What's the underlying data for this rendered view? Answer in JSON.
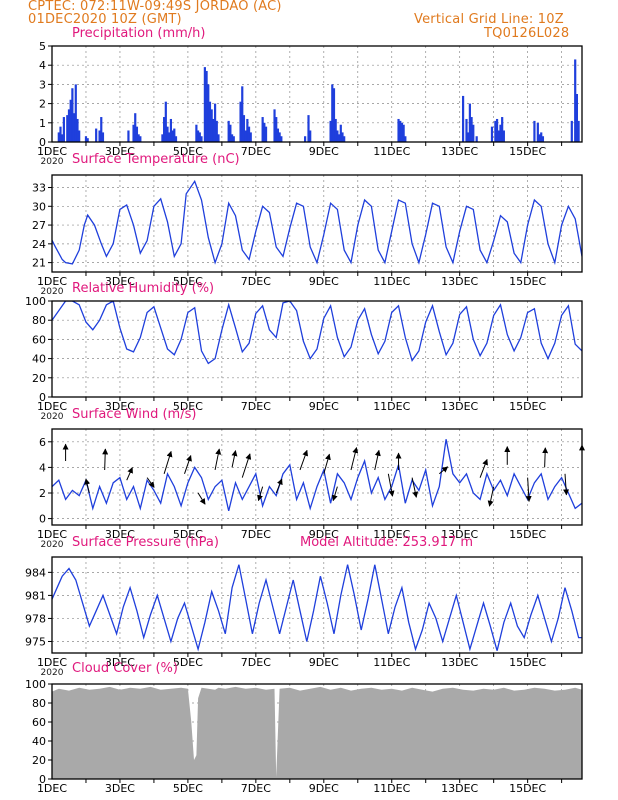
{
  "header": {
    "line1_left": "CPTEC:   072:11W-09:49S   JORDAO (AC)",
    "line2_left": "01DEC2020 10Z (GMT)",
    "line1_right": "Vertical Grid Line: 10Z",
    "line2_right": "TQ0126L028"
  },
  "colors": {
    "title": "#e0197d",
    "header": "#e07a1e",
    "line": "#1f3fdc",
    "bar": "#1f3fdc",
    "cloud": "#a9a9a9",
    "arrow": "#000000",
    "grid": "#8c8c8c"
  },
  "x_axis": {
    "day_range": [
      0,
      15.6
    ],
    "tick_labels": [
      "1DEC",
      "3DEC",
      "5DEC",
      "7DEC",
      "9DEC",
      "11DEC",
      "13DEC",
      "15DEC"
    ],
    "tick_days": [
      0,
      2,
      4,
      6,
      8,
      10,
      12,
      14
    ],
    "year_label": "2020",
    "vertical_grid_hour": "10Z"
  },
  "panels": {
    "precip": {
      "title": "Precipitation (mm/h)"
    },
    "temp": {
      "title": "Surface Temperature (nC)"
    },
    "rh": {
      "title": "Relative Humidity (%)"
    },
    "wind": {
      "title": "Surface Wind (m/s)"
    },
    "pres": {
      "title": "Surface Pressure (hPa)",
      "subtitle": "Model Altitude: 253.917 m"
    },
    "cloud": {
      "title": "Cloud Cover (%)"
    }
  },
  "chart_data": [
    {
      "id": "precip",
      "type": "bar",
      "title": "Precipitation (mm/h)",
      "ylabel": "mm/h",
      "ylim": [
        0,
        5
      ],
      "yticks": [
        0,
        1,
        2,
        3,
        4,
        5
      ],
      "grid": true,
      "x_days": [
        0.2,
        0.25,
        0.3,
        0.35,
        0.45,
        0.5,
        0.55,
        0.6,
        0.65,
        0.7,
        0.75,
        0.8,
        1.0,
        1.05,
        1.3,
        1.4,
        1.45,
        1.5,
        2.25,
        2.4,
        2.45,
        2.5,
        2.55,
        2.6,
        3.25,
        3.3,
        3.35,
        3.4,
        3.45,
        3.5,
        3.55,
        3.6,
        3.65,
        4.25,
        4.3,
        4.35,
        4.4,
        4.5,
        4.55,
        4.6,
        4.65,
        4.7,
        4.75,
        4.8,
        4.85,
        4.9,
        5.2,
        5.25,
        5.3,
        5.35,
        5.55,
        5.6,
        5.65,
        5.7,
        5.75,
        5.8,
        5.85,
        6.2,
        6.25,
        6.3,
        6.55,
        6.6,
        6.65,
        6.7,
        6.75,
        7.45,
        7.55,
        7.6,
        8.2,
        8.25,
        8.3,
        8.35,
        8.4,
        8.45,
        8.5,
        8.55,
        8.6,
        10.2,
        10.25,
        10.3,
        10.35,
        10.4,
        12.1,
        12.2,
        12.25,
        12.3,
        12.35,
        12.4,
        12.5,
        12.95,
        13.05,
        13.1,
        13.15,
        13.2,
        13.25,
        13.3,
        14.2,
        14.3,
        14.35,
        14.4,
        14.45,
        15.3,
        15.4,
        15.45,
        15.5
      ],
      "values": [
        0.5,
        0.8,
        0.4,
        1.3,
        1.4,
        1.7,
        2.2,
        2.8,
        1.5,
        3.0,
        1.2,
        0.6,
        0.3,
        0.2,
        0.7,
        0.6,
        1.3,
        0.5,
        0.6,
        0.9,
        1.5,
        0.8,
        0.4,
        0.3,
        0.4,
        1.3,
        2.1,
        0.8,
        0.5,
        1.2,
        0.6,
        0.7,
        0.3,
        0.9,
        0.6,
        0.5,
        0.3,
        3.9,
        3.7,
        3.0,
        2.1,
        1.7,
        1.2,
        2.0,
        1.1,
        0.4,
        1.1,
        0.9,
        0.4,
        0.3,
        2.1,
        2.9,
        1.4,
        0.6,
        1.2,
        0.8,
        0.5,
        1.3,
        1.0,
        0.8,
        1.7,
        1.3,
        0.7,
        0.5,
        0.3,
        0.3,
        1.4,
        0.6,
        1.1,
        3.0,
        2.8,
        1.2,
        0.6,
        0.4,
        0.9,
        0.5,
        0.3,
        1.2,
        1.1,
        1.0,
        0.9,
        0.3,
        2.4,
        1.2,
        0.5,
        2.0,
        1.3,
        0.9,
        0.3,
        0.8,
        1.1,
        1.2,
        0.6,
        0.9,
        1.3,
        0.6,
        1.1,
        1.0,
        0.4,
        0.5,
        0.3,
        1.1,
        4.3,
        2.5,
        1.1
      ]
    },
    {
      "id": "temp",
      "type": "line",
      "title": "Surface Temperature (nC)",
      "ylabel": "nC",
      "ylim": [
        19.5,
        35.0
      ],
      "yticks": [
        21,
        24,
        27,
        30,
        33
      ],
      "grid": true,
      "x_days": [
        0,
        0.1,
        0.2,
        0.3,
        0.4,
        0.6,
        0.8,
        0.95,
        1.05,
        1.25,
        1.45,
        1.6,
        1.8,
        2.0,
        2.2,
        2.4,
        2.6,
        2.8,
        3.0,
        3.2,
        3.4,
        3.6,
        3.8,
        3.95,
        4.2,
        4.4,
        4.6,
        4.8,
        5.0,
        5.2,
        5.4,
        5.6,
        5.8,
        6.0,
        6.2,
        6.4,
        6.6,
        6.8,
        7.0,
        7.2,
        7.4,
        7.6,
        7.8,
        8.0,
        8.2,
        8.4,
        8.6,
        8.8,
        9.0,
        9.2,
        9.4,
        9.6,
        9.8,
        10.0,
        10.2,
        10.4,
        10.6,
        10.8,
        11.0,
        11.2,
        11.4,
        11.6,
        11.8,
        12.0,
        12.2,
        12.4,
        12.6,
        12.8,
        13.0,
        13.2,
        13.4,
        13.6,
        13.8,
        14.0,
        14.2,
        14.4,
        14.6,
        14.8,
        15.0,
        15.2,
        15.4,
        15.6
      ],
      "values": [
        24.6,
        23.5,
        22.5,
        21.5,
        21.0,
        20.8,
        23.0,
        27.0,
        28.6,
        27.0,
        24.0,
        22.0,
        24.0,
        29.5,
        30.2,
        27.0,
        22.5,
        24.5,
        30.0,
        31.2,
        27.5,
        22.0,
        24.0,
        32.0,
        34.0,
        31.0,
        25.0,
        21.0,
        24.0,
        30.5,
        28.5,
        23.0,
        21.5,
        26.0,
        30.0,
        29.0,
        23.5,
        22.0,
        26.5,
        30.5,
        30.0,
        23.5,
        21.0,
        25.5,
        30.5,
        29.5,
        23.0,
        21.0,
        27.0,
        31.0,
        30.0,
        23.0,
        21.0,
        26.0,
        31.0,
        30.5,
        24.0,
        21.0,
        25.5,
        30.5,
        30.0,
        23.5,
        21.0,
        26.0,
        30.0,
        29.5,
        23.0,
        21.0,
        24.5,
        28.5,
        27.5,
        22.5,
        21.0,
        27.0,
        31.0,
        30.0,
        24.0,
        21.0,
        27.0,
        30.0,
        28.0,
        22.0
      ]
    },
    {
      "id": "rh",
      "type": "line",
      "title": "Relative Humidity (%)",
      "ylabel": "%",
      "ylim": [
        0,
        100
      ],
      "yticks": [
        0,
        20,
        40,
        60,
        80,
        100
      ],
      "grid": true,
      "x_days": [
        0,
        0.2,
        0.4,
        0.6,
        0.8,
        1.0,
        1.2,
        1.4,
        1.6,
        1.8,
        2.0,
        2.2,
        2.4,
        2.6,
        2.8,
        3.0,
        3.2,
        3.4,
        3.6,
        3.8,
        4.0,
        4.2,
        4.4,
        4.6,
        4.8,
        5.0,
        5.2,
        5.4,
        5.6,
        5.8,
        6.0,
        6.2,
        6.4,
        6.6,
        6.8,
        7.0,
        7.2,
        7.4,
        7.6,
        7.8,
        8.0,
        8.2,
        8.4,
        8.6,
        8.8,
        9.0,
        9.2,
        9.4,
        9.6,
        9.8,
        10.0,
        10.2,
        10.4,
        10.6,
        10.8,
        11.0,
        11.2,
        11.4,
        11.6,
        11.8,
        12.0,
        12.2,
        12.4,
        12.6,
        12.8,
        13.0,
        13.2,
        13.4,
        13.6,
        13.8,
        14.0,
        14.2,
        14.4,
        14.6,
        14.8,
        15.0,
        15.2,
        15.4,
        15.6
      ],
      "values": [
        80,
        90,
        100,
        100,
        96,
        78,
        70,
        80,
        96,
        100,
        72,
        50,
        47,
        62,
        88,
        94,
        72,
        50,
        44,
        60,
        88,
        93,
        48,
        35,
        40,
        70,
        96,
        72,
        47,
        56,
        87,
        95,
        70,
        62,
        98,
        100,
        90,
        58,
        40,
        50,
        82,
        95,
        62,
        42,
        52,
        80,
        92,
        65,
        45,
        58,
        88,
        95,
        62,
        38,
        48,
        78,
        95,
        68,
        44,
        56,
        86,
        94,
        60,
        43,
        56,
        85,
        96,
        65,
        48,
        62,
        88,
        92,
        56,
        40,
        56,
        85,
        95,
        55,
        48
      ]
    },
    {
      "id": "wind",
      "type": "line",
      "title": "Surface Wind (m/s)",
      "ylabel": "m/s",
      "ylim": [
        -0.5,
        7.0
      ],
      "yticks": [
        0,
        2,
        4,
        6
      ],
      "grid": true,
      "x_days": [
        0,
        0.2,
        0.4,
        0.6,
        0.8,
        1.0,
        1.2,
        1.4,
        1.6,
        1.8,
        2.0,
        2.2,
        2.4,
        2.6,
        2.8,
        3.0,
        3.2,
        3.4,
        3.6,
        3.8,
        4.0,
        4.2,
        4.4,
        4.6,
        4.8,
        5.0,
        5.2,
        5.4,
        5.6,
        5.8,
        6.0,
        6.2,
        6.4,
        6.6,
        6.8,
        7.0,
        7.2,
        7.4,
        7.6,
        7.8,
        8.0,
        8.2,
        8.4,
        8.6,
        8.8,
        9.0,
        9.2,
        9.4,
        9.6,
        9.8,
        10.0,
        10.2,
        10.4,
        10.6,
        10.8,
        11.0,
        11.2,
        11.4,
        11.6,
        11.8,
        12.0,
        12.2,
        12.4,
        12.6,
        12.8,
        13.0,
        13.2,
        13.4,
        13.6,
        13.8,
        14.0,
        14.2,
        14.4,
        14.6,
        14.8,
        15.0,
        15.2,
        15.4,
        15.6
      ],
      "values": [
        2.5,
        3.0,
        1.5,
        2.2,
        1.8,
        3.0,
        0.8,
        2.5,
        1.2,
        2.8,
        3.2,
        1.5,
        2.5,
        0.8,
        3.0,
        2.2,
        1.2,
        3.5,
        2.5,
        1.0,
        2.8,
        4.0,
        3.2,
        1.5,
        2.5,
        3.0,
        0.6,
        2.8,
        1.5,
        2.5,
        3.5,
        1.0,
        2.5,
        1.8,
        3.5,
        4.2,
        1.5,
        2.8,
        0.8,
        2.5,
        3.8,
        1.2,
        3.5,
        2.8,
        1.5,
        3.2,
        4.5,
        2.0,
        3.2,
        1.5,
        2.5,
        4.2,
        1.2,
        3.0,
        2.2,
        3.8,
        1.0,
        2.5,
        6.2,
        3.5,
        2.8,
        3.5,
        2.0,
        1.5,
        3.5,
        2.2,
        3.0,
        1.8,
        3.5,
        2.5,
        1.5,
        2.8,
        3.5,
        1.5,
        2.5,
        3.2,
        2.0,
        0.8,
        1.2
      ],
      "arrows": [
        {
          "x": 0.4,
          "y": 4.5,
          "dx": 0.0,
          "dy": 1.2
        },
        {
          "x": 1.1,
          "y": 2.0,
          "dx": -0.25,
          "dy": 1.0
        },
        {
          "x": 1.55,
          "y": 3.8,
          "dx": 0.05,
          "dy": 1.5
        },
        {
          "x": 2.2,
          "y": 3.0,
          "dx": 0.4,
          "dy": 0.9
        },
        {
          "x": 2.8,
          "y": 3.2,
          "dx": 0.5,
          "dy": -0.7
        },
        {
          "x": 3.3,
          "y": 3.5,
          "dx": 0.5,
          "dy": 1.6
        },
        {
          "x": 3.9,
          "y": 3.5,
          "dx": 0.45,
          "dy": 1.3
        },
        {
          "x": 4.3,
          "y": 2.0,
          "dx": 0.5,
          "dy": -0.8
        },
        {
          "x": 4.8,
          "y": 3.8,
          "dx": 0.3,
          "dy": 1.5
        },
        {
          "x": 5.3,
          "y": 4.0,
          "dx": 0.25,
          "dy": 1.2
        },
        {
          "x": 5.6,
          "y": 3.2,
          "dx": 0.55,
          "dy": 1.7
        },
        {
          "x": 6.2,
          "y": 2.5,
          "dx": -0.3,
          "dy": -1.0
        },
        {
          "x": 6.6,
          "y": 2.0,
          "dx": 0.4,
          "dy": 1.0
        },
        {
          "x": 7.3,
          "y": 3.8,
          "dx": 0.5,
          "dy": 1.4
        },
        {
          "x": 8.0,
          "y": 3.5,
          "dx": 0.4,
          "dy": 1.4
        },
        {
          "x": 8.4,
          "y": 2.5,
          "dx": -0.3,
          "dy": -1.0
        },
        {
          "x": 8.8,
          "y": 3.8,
          "dx": 0.4,
          "dy": 1.6
        },
        {
          "x": 9.5,
          "y": 3.8,
          "dx": 0.3,
          "dy": 1.4
        },
        {
          "x": 9.9,
          "y": 3.5,
          "dx": 0.3,
          "dy": -1.6
        },
        {
          "x": 10.2,
          "y": 3.8,
          "dx": 0.0,
          "dy": 1.2
        },
        {
          "x": 10.6,
          "y": 3.2,
          "dx": 0.3,
          "dy": -1.4
        },
        {
          "x": 11.4,
          "y": 3.5,
          "dx": 0.6,
          "dy": 0.5
        },
        {
          "x": 12.6,
          "y": 3.2,
          "dx": 0.5,
          "dy": 1.3
        },
        {
          "x": 13.0,
          "y": 2.5,
          "dx": -0.3,
          "dy": -1.4
        },
        {
          "x": 13.4,
          "y": 4.2,
          "dx": 0.0,
          "dy": 1.3
        },
        {
          "x": 14.0,
          "y": 3.2,
          "dx": 0.1,
          "dy": -1.7
        },
        {
          "x": 14.5,
          "y": 4.0,
          "dx": 0.05,
          "dy": 1.4
        },
        {
          "x": 15.1,
          "y": 3.5,
          "dx": 0.1,
          "dy": -1.5
        },
        {
          "x": 15.6,
          "y": 4.0,
          "dx": 0.0,
          "dy": 1.6
        }
      ]
    },
    {
      "id": "pres",
      "type": "line",
      "title": "Surface Pressure (hPa)",
      "ylabel": "hPa",
      "ylim": [
        973.5,
        986.0
      ],
      "yticks": [
        975,
        978,
        981,
        984
      ],
      "grid": true,
      "x_days": [
        0,
        0.15,
        0.3,
        0.5,
        0.7,
        0.9,
        1.1,
        1.3,
        1.5,
        1.7,
        1.9,
        2.1,
        2.3,
        2.5,
        2.7,
        2.9,
        3.1,
        3.3,
        3.5,
        3.7,
        3.9,
        4.1,
        4.3,
        4.5,
        4.7,
        4.9,
        5.1,
        5.3,
        5.5,
        5.7,
        5.9,
        6.1,
        6.3,
        6.5,
        6.7,
        6.9,
        7.1,
        7.3,
        7.5,
        7.7,
        7.9,
        8.1,
        8.3,
        8.5,
        8.7,
        8.9,
        9.1,
        9.3,
        9.5,
        9.7,
        9.9,
        10.1,
        10.3,
        10.5,
        10.7,
        10.9,
        11.1,
        11.3,
        11.5,
        11.7,
        11.9,
        12.1,
        12.3,
        12.5,
        12.7,
        12.9,
        13.1,
        13.3,
        13.5,
        13.7,
        13.9,
        14.1,
        14.3,
        14.5,
        14.7,
        14.9,
        15.1,
        15.3,
        15.5,
        15.6
      ],
      "values": [
        980.5,
        982.0,
        983.5,
        984.5,
        983.0,
        980.0,
        977.0,
        979.0,
        981.0,
        978.5,
        976.0,
        979.5,
        982.0,
        979.0,
        975.5,
        978.5,
        981.0,
        978.0,
        975.0,
        978.0,
        980.0,
        977.0,
        974.0,
        977.5,
        981.5,
        979.0,
        976.0,
        982.0,
        985.0,
        980.5,
        976.0,
        980.0,
        983.0,
        979.5,
        976.0,
        979.5,
        983.0,
        979.0,
        975.0,
        979.0,
        983.5,
        980.0,
        976.0,
        981.0,
        985.0,
        981.0,
        976.5,
        980.5,
        985.0,
        980.5,
        976.0,
        979.5,
        982.0,
        977.5,
        974.0,
        976.5,
        980.0,
        978.0,
        975.0,
        978.0,
        981.0,
        977.5,
        974.0,
        977.0,
        980.0,
        977.0,
        973.8,
        977.5,
        980.0,
        977.0,
        975.5,
        978.5,
        981.0,
        978.0,
        975.0,
        978.0,
        982.0,
        979.0,
        975.5,
        975.5
      ]
    },
    {
      "id": "cloud",
      "type": "area",
      "title": "Cloud Cover (%)",
      "ylabel": "%",
      "ylim": [
        0,
        100
      ],
      "yticks": [
        0,
        20,
        40,
        60,
        80,
        100
      ],
      "grid": true,
      "x_days": [
        0,
        0.2,
        0.5,
        0.8,
        1.1,
        1.4,
        1.7,
        2.0,
        2.3,
        2.6,
        2.9,
        3.2,
        3.5,
        3.8,
        4.0,
        4.1,
        4.18,
        4.25,
        4.3,
        4.4,
        4.6,
        4.8,
        4.9,
        5.1,
        5.4,
        5.7,
        6.0,
        6.3,
        6.55,
        6.6,
        6.7,
        7.0,
        7.3,
        7.6,
        7.9,
        8.2,
        8.5,
        8.8,
        9.1,
        9.4,
        9.7,
        10.0,
        10.3,
        10.6,
        10.9,
        11.2,
        11.5,
        11.8,
        12.1,
        12.4,
        12.7,
        13.0,
        13.3,
        13.6,
        13.9,
        14.2,
        14.5,
        14.8,
        15.1,
        15.4,
        15.6
      ],
      "values": [
        92,
        95,
        93,
        96,
        94,
        95,
        97,
        94,
        96,
        95,
        97,
        94,
        95,
        96,
        95,
        60,
        20,
        25,
        85,
        96,
        95,
        94,
        96,
        95,
        97,
        95,
        96,
        94,
        95,
        2,
        95,
        96,
        93,
        95,
        97,
        94,
        96,
        93,
        95,
        96,
        94,
        95,
        93,
        96,
        94,
        92,
        95,
        96,
        94,
        93,
        95,
        94,
        96,
        93,
        94,
        96,
        95,
        93,
        94,
        96,
        94
      ]
    }
  ]
}
